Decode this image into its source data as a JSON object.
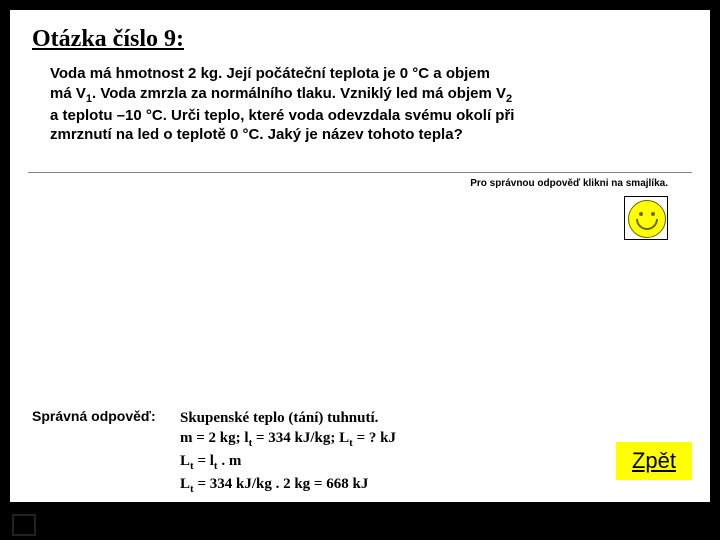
{
  "title": "Otázka číslo 9:",
  "question": {
    "line1": "Voda má hmotnost 2 kg. Její počáteční teplota je 0 °C a objem",
    "line2a": "má V",
    "sub1": "1",
    "line2b": ". Voda zmrzla za normálního tlaku. Vzniklý led má objem V",
    "sub2": "2",
    "line3": "a teplotu –10 °C. Urči teplo, které voda odevzdala svému okolí při",
    "line4": "zmrznutí na led o teplotě 0 °C. Jaký je název tohoto tepla?"
  },
  "hint": "Pro správnou odpověď klikni na smajlíka.",
  "answer_label": "Správná odpověď:",
  "answer": {
    "line1": "Skupenské teplo (tání) tuhnutí.",
    "line2_a": "m = 2 kg; l",
    "line2_sub1": "t",
    "line2_b": " = 334 kJ/kg; L",
    "line2_sub2": "t",
    "line2_c": " = ? kJ",
    "line3_a": "L",
    "line3_sub1": "t",
    "line3_b": " = l",
    "line3_sub2": "t",
    "line3_c": " . m",
    "line4_a": "L",
    "line4_sub1": "t",
    "line4_b": " = 334 kJ/kg . 2 kg = 668 kJ"
  },
  "back_label": "Zpět",
  "colors": {
    "bg": "#000000",
    "content": "#ffffff",
    "smiley": "#ffff00",
    "button": "#ffff00"
  }
}
